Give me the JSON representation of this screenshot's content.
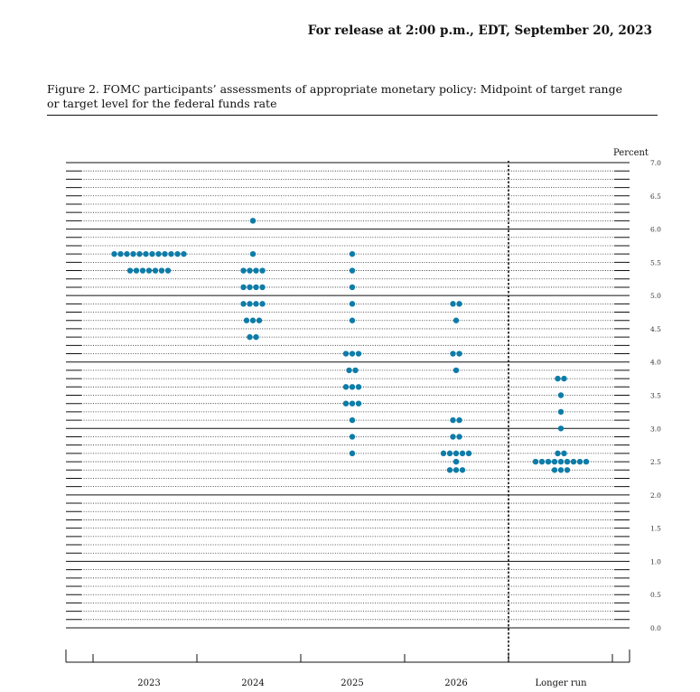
{
  "header": {
    "release_note": "For release at 2:00 p.m., EDT, September 20, 2023"
  },
  "figure": {
    "caption_line1": "Figure 2.  FOMC participants’ assessments of appropriate monetary policy: Midpoint of target range",
    "caption_line2": "or target level for the federal funds rate"
  },
  "chart_data": {
    "type": "scatter",
    "ylabel": "Percent",
    "ylim": [
      0.0,
      7.0
    ],
    "yticks": [
      "0.0",
      "0.5",
      "1.0",
      "1.5",
      "2.0",
      "2.5",
      "3.0",
      "3.5",
      "4.0",
      "4.5",
      "5.0",
      "5.5",
      "6.0",
      "6.5",
      "7.0"
    ],
    "categories": [
      "2023",
      "2024",
      "2025",
      "2026",
      "Longer run"
    ],
    "dot_color": "#0e7ca8",
    "grid": true,
    "series": [
      {
        "category": "2023",
        "points": [
          {
            "y": 5.625,
            "count": 12
          },
          {
            "y": 5.375,
            "count": 7
          }
        ]
      },
      {
        "category": "2024",
        "points": [
          {
            "y": 6.125,
            "count": 1
          },
          {
            "y": 5.625,
            "count": 1
          },
          {
            "y": 5.375,
            "count": 4
          },
          {
            "y": 5.125,
            "count": 4
          },
          {
            "y": 4.875,
            "count": 4
          },
          {
            "y": 4.625,
            "count": 3
          },
          {
            "y": 4.375,
            "count": 2
          }
        ]
      },
      {
        "category": "2025",
        "points": [
          {
            "y": 5.625,
            "count": 1
          },
          {
            "y": 5.375,
            "count": 1
          },
          {
            "y": 5.125,
            "count": 1
          },
          {
            "y": 4.875,
            "count": 1
          },
          {
            "y": 4.625,
            "count": 1
          },
          {
            "y": 4.125,
            "count": 3
          },
          {
            "y": 3.875,
            "count": 2
          },
          {
            "y": 3.625,
            "count": 3
          },
          {
            "y": 3.375,
            "count": 3
          },
          {
            "y": 3.125,
            "count": 1
          },
          {
            "y": 2.875,
            "count": 1
          },
          {
            "y": 2.625,
            "count": 1
          }
        ]
      },
      {
        "category": "2026",
        "points": [
          {
            "y": 4.875,
            "count": 2
          },
          {
            "y": 4.625,
            "count": 1
          },
          {
            "y": 4.125,
            "count": 2
          },
          {
            "y": 3.875,
            "count": 1
          },
          {
            "y": 3.125,
            "count": 2
          },
          {
            "y": 2.875,
            "count": 2
          },
          {
            "y": 2.625,
            "count": 5
          },
          {
            "y": 2.5,
            "count": 1
          },
          {
            "y": 2.375,
            "count": 3
          }
        ]
      },
      {
        "category": "Longer run",
        "points": [
          {
            "y": 3.75,
            "count": 2
          },
          {
            "y": 3.5,
            "count": 1
          },
          {
            "y": 3.25,
            "count": 1
          },
          {
            "y": 3.0,
            "count": 1
          },
          {
            "y": 2.625,
            "count": 2
          },
          {
            "y": 2.5,
            "count": 9
          },
          {
            "y": 2.375,
            "count": 3
          }
        ]
      }
    ]
  }
}
